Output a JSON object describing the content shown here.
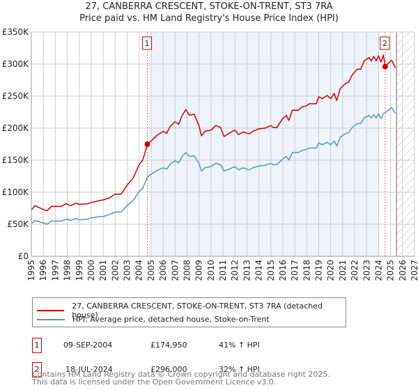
{
  "chart_data": {
    "type": "line",
    "title": "27, CANBERRA CRESCENT, STOKE-ON-TRENT, ST3 7RA",
    "subtitle": "Price paid vs. HM Land Registry's House Price Index (HPI)",
    "xlim": [
      1995,
      2027
    ],
    "ylim": [
      0,
      350000
    ],
    "y_ticks": [
      {
        "v": 0,
        "label": "£0"
      },
      {
        "v": 50000,
        "label": "£50K"
      },
      {
        "v": 100000,
        "label": "£100K"
      },
      {
        "v": 150000,
        "label": "£150K"
      },
      {
        "v": 200000,
        "label": "£200K"
      },
      {
        "v": 250000,
        "label": "£250K"
      },
      {
        "v": 300000,
        "label": "£300K"
      },
      {
        "v": 350000,
        "label": "£350K"
      }
    ],
    "x_ticks": [
      "1995",
      "1996",
      "1997",
      "1998",
      "1999",
      "2000",
      "2001",
      "2002",
      "2003",
      "2004",
      "2005",
      "2006",
      "2007",
      "2008",
      "2009",
      "2010",
      "2011",
      "2012",
      "2013",
      "2014",
      "2015",
      "2016",
      "2017",
      "2018",
      "2019",
      "2020",
      "2021",
      "2022",
      "2023",
      "2024",
      "2025",
      "2026",
      "2027"
    ],
    "grid": true,
    "shaded_period": [
      2005.0,
      2024.1
    ],
    "forecast_hatch_from": 2025.5,
    "colors": {
      "property": "#cc0000",
      "hpi": "#5b8fd4",
      "shade": "#eef3fc"
    },
    "x": [
      1995.0,
      1995.3,
      1996.0,
      1996.3,
      1996.7,
      1997.5,
      1997.9,
      1998.3,
      1998.7,
      1999.0,
      1999.7,
      2000.0,
      2000.7,
      2001.0,
      2001.5,
      2002.0,
      2002.5,
      2003.0,
      2003.5,
      2004.0,
      2004.3,
      2004.7,
      2005.0,
      2005.5,
      2006.0,
      2006.3,
      2006.6,
      2007.0,
      2007.3,
      2007.6,
      2007.9,
      2008.2,
      2008.6,
      2009.0,
      2009.2,
      2009.5,
      2010.0,
      2010.4,
      2010.8,
      2011.1,
      2011.5,
      2012.0,
      2012.3,
      2012.7,
      2013.2,
      2013.5,
      2014.0,
      2014.5,
      2015.0,
      2015.2,
      2015.5,
      2016.0,
      2016.3,
      2016.5,
      2016.8,
      2017.3,
      2017.6,
      2018.0,
      2018.2,
      2018.8,
      2019.0,
      2019.3,
      2019.7,
      2020.0,
      2020.3,
      2020.5,
      2020.8,
      2021.2,
      2021.5,
      2021.8,
      2022.2,
      2022.5,
      2022.8,
      2023.2,
      2023.4,
      2023.6,
      2023.8,
      2024.0,
      2024.2,
      2024.4,
      2024.55,
      2024.8,
      2025.1,
      2025.4
    ],
    "series": [
      {
        "name": "27, CANBERRA CRESCENT, STOKE-ON-TRENT, ST3 7RA (detached house)",
        "color": "#cc0000",
        "values": [
          72,
          79,
          73,
          71,
          78,
          78,
          82,
          79,
          83,
          81,
          82,
          84,
          87,
          88,
          91,
          97,
          97,
          111,
          122,
          143,
          150,
          175,
          180,
          189,
          195,
          192,
          203,
          210,
          206,
          220,
          229,
          220,
          222,
          204,
          188,
          195,
          197,
          204,
          201,
          187,
          192,
          197,
          190,
          194,
          191,
          195,
          199,
          200,
          204,
          201,
          201,
          215,
          220,
          212,
          228,
          228,
          233,
          235,
          238,
          238,
          249,
          246,
          251,
          246,
          254,
          243,
          262,
          269,
          272,
          283,
          292,
          292,
          305,
          310,
          305,
          312,
          305,
          313,
          303,
          314,
          296,
          301,
          306,
          294
        ],
        "unit": "£K"
      },
      {
        "name": "HPI: Average price, detached house, Stoke-on-Trent",
        "color": "#5b8fd4",
        "values": [
          51,
          56,
          52,
          50,
          55,
          55,
          58,
          56,
          59,
          57,
          58,
          60,
          62,
          62,
          65,
          69,
          69,
          79,
          87,
          101,
          106,
          124,
          128,
          134,
          138,
          136,
          144,
          149,
          146,
          156,
          162,
          156,
          157,
          145,
          133,
          138,
          140,
          145,
          143,
          133,
          136,
          140,
          135,
          138,
          135,
          138,
          141,
          142,
          145,
          143,
          143,
          152,
          156,
          150,
          162,
          162,
          165,
          167,
          169,
          169,
          177,
          174,
          178,
          174,
          180,
          172,
          186,
          191,
          193,
          201,
          207,
          207,
          216,
          220,
          216,
          221,
          216,
          222,
          215,
          223,
          224,
          228,
          232,
          223
        ],
        "unit": "£K"
      }
    ],
    "sales": [
      {
        "id": "1",
        "x": 2004.69,
        "price": 174950,
        "date": "09-SEP-2004",
        "price_label": "£174,950",
        "delta": "41% ↑ HPI"
      },
      {
        "id": "2",
        "x": 2024.55,
        "price": 296000,
        "date": "18-JUL-2024",
        "price_label": "£296,000",
        "delta": "32% ↑ HPI"
      }
    ]
  },
  "legend": {
    "property": "27, CANBERRA CRESCENT, STOKE-ON-TRENT, ST3 7RA (detached house)",
    "hpi": "HPI: Average price, detached house, Stoke-on-Trent"
  },
  "footer": {
    "line1": "Contains HM Land Registry data © Crown copyright and database right 2025.",
    "line2": "This data is licensed under the Open Government Licence v3.0."
  }
}
